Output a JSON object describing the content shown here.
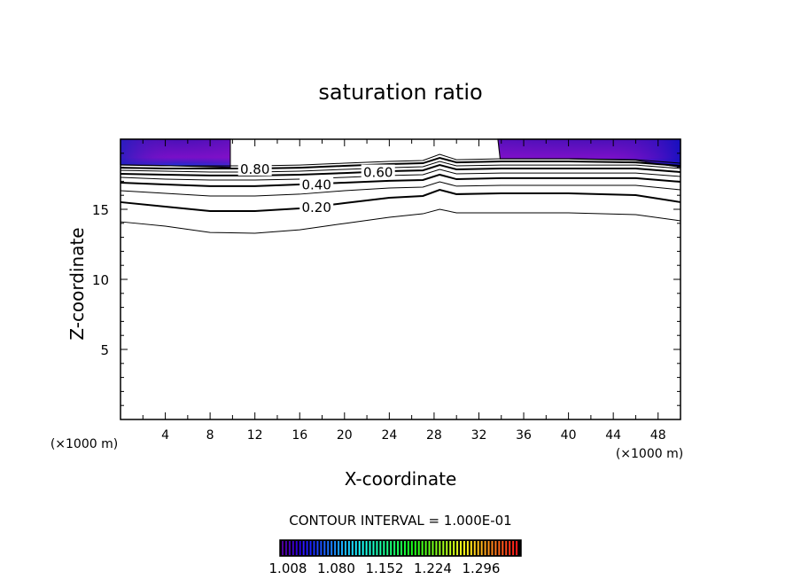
{
  "chart_data": {
    "type": "contour",
    "title": "saturation ratio",
    "xlabel": "X-coordinate",
    "ylabel": "Z-coordinate",
    "x_unit_left": "(×1000 m)",
    "x_unit_right": "(×1000 m)",
    "xlim": [
      0,
      50
    ],
    "ylim": [
      0,
      20
    ],
    "xticks": [
      4,
      8,
      12,
      16,
      20,
      24,
      28,
      32,
      36,
      40,
      44,
      48
    ],
    "yticks": [
      5,
      10,
      15
    ],
    "contour_interval_label": "CONTOUR INTERVAL = 1.000E-01",
    "contour_x": [
      0,
      4,
      8,
      12,
      16,
      20,
      24,
      27,
      28.5,
      30,
      34,
      40,
      46,
      50
    ],
    "contours": [
      {
        "level": 0.1,
        "labeled": false,
        "z": [
          14.11,
          13.8,
          13.35,
          13.29,
          13.54,
          13.99,
          14.43,
          14.68,
          15.0,
          14.75,
          14.75,
          14.75,
          14.62,
          14.18
        ]
      },
      {
        "level": 0.2,
        "labeled": true,
        "label": "0.20",
        "z": [
          15.51,
          15.19,
          14.87,
          14.87,
          15.06,
          15.44,
          15.82,
          15.95,
          16.39,
          16.08,
          16.14,
          16.14,
          16.01,
          15.51
        ]
      },
      {
        "level": 0.3,
        "labeled": false,
        "z": [
          16.33,
          16.14,
          15.95,
          15.95,
          16.08,
          16.33,
          16.52,
          16.58,
          16.96,
          16.65,
          16.71,
          16.71,
          16.71,
          16.39
        ]
      },
      {
        "level": 0.4,
        "labeled": true,
        "label": "0.40",
        "z": [
          16.9,
          16.77,
          16.65,
          16.65,
          16.77,
          16.9,
          17.03,
          17.09,
          17.47,
          17.15,
          17.22,
          17.22,
          17.22,
          16.96
        ]
      },
      {
        "level": 0.5,
        "labeled": false,
        "z": [
          17.28,
          17.15,
          17.09,
          17.09,
          17.15,
          17.28,
          17.41,
          17.47,
          17.85,
          17.53,
          17.59,
          17.59,
          17.59,
          17.34
        ]
      },
      {
        "level": 0.6,
        "labeled": true,
        "label": "0.60",
        "z": [
          17.53,
          17.47,
          17.41,
          17.41,
          17.47,
          17.59,
          17.72,
          17.78,
          18.16,
          17.85,
          17.91,
          17.91,
          17.91,
          17.66
        ]
      },
      {
        "level": 0.7,
        "labeled": false,
        "z": [
          17.78,
          17.72,
          17.66,
          17.66,
          17.72,
          17.85,
          17.97,
          18.04,
          18.42,
          18.1,
          18.16,
          18.16,
          18.16,
          17.91
        ]
      },
      {
        "level": 0.8,
        "labeled": true,
        "label": "0.80",
        "z": [
          17.97,
          17.91,
          17.91,
          17.91,
          17.97,
          18.1,
          18.23,
          18.29,
          18.67,
          18.35,
          18.42,
          18.42,
          18.35,
          18.1
        ]
      },
      {
        "level": 0.9,
        "labeled": false,
        "z": [
          18.16,
          18.1,
          18.1,
          18.1,
          18.16,
          18.29,
          18.42,
          18.48,
          18.92,
          18.54,
          18.61,
          18.61,
          18.54,
          18.29
        ]
      }
    ],
    "filled_regions": [
      {
        "name": "supersaturated-left",
        "x": [
          0,
          0,
          9.8,
          9.8
        ],
        "z": [
          20,
          18.2,
          18.0,
          20
        ]
      },
      {
        "name": "supersaturated-right",
        "x": [
          33.7,
          33.9,
          40,
          46,
          50,
          50
        ],
        "z": [
          20,
          18.6,
          18.6,
          18.5,
          18.0,
          20
        ]
      }
    ],
    "colorbar": {
      "ticks": [
        "1.008",
        "1.080",
        "1.152",
        "1.224",
        "1.296"
      ],
      "min": 1.0,
      "max": 1.33
    }
  }
}
